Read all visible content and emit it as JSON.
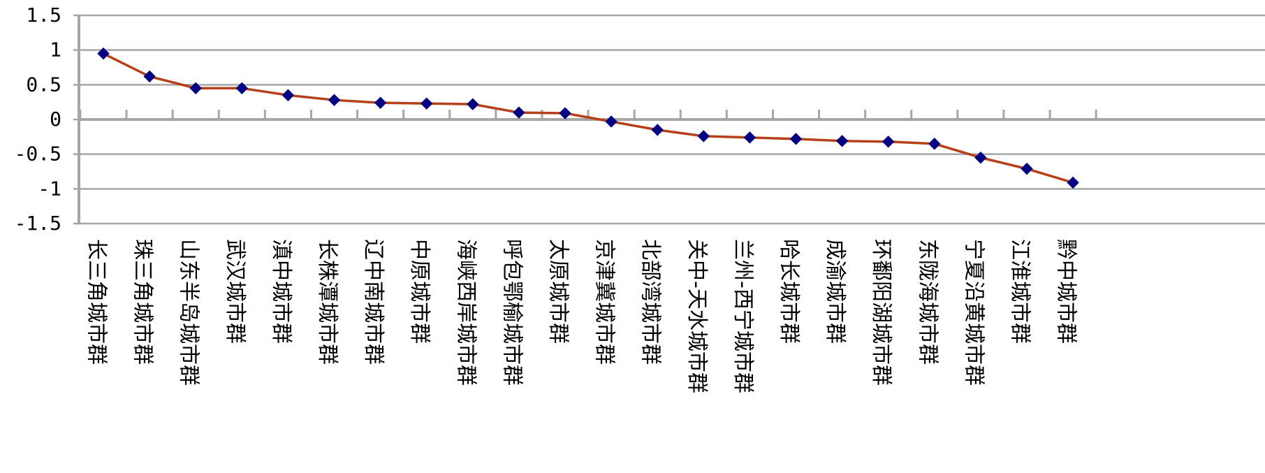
{
  "chart_data": {
    "type": "line",
    "title": "",
    "xlabel": "",
    "ylabel": "",
    "ylim": [
      -1.5,
      1.5
    ],
    "yticks": [
      1.5,
      1,
      0.5,
      0,
      -0.5,
      -1,
      -1.5
    ],
    "ytick_labels": [
      "1.5",
      "1",
      "0.5",
      "0",
      "-0.5",
      "-1",
      "-1.5"
    ],
    "grid": true,
    "legend": "none",
    "categories": [
      "长三角城市群",
      "珠三角城市群",
      "山东半岛城市群",
      "武汉城市群",
      "滇中城市群",
      "长株潭城市群",
      "辽中南城市群",
      "中原城市群",
      "海峡西岸城市群",
      "呼包鄂榆城市群",
      "太原城市群",
      "京津冀城市群",
      "北部湾城市群",
      "关中-天水城市群",
      "兰州-西宁城市群",
      "哈长城市群",
      "成渝城市群",
      "环鄱阳湖城市群",
      "东陇海城市群",
      "宁夏沿黄城市群",
      "江淮城市群",
      "黔中城市群"
    ],
    "values": [
      0.95,
      0.62,
      0.45,
      0.45,
      0.35,
      0.28,
      0.24,
      0.23,
      0.22,
      0.1,
      0.09,
      -0.03,
      -0.15,
      -0.24,
      -0.26,
      -0.28,
      -0.31,
      -0.32,
      -0.35,
      -0.55,
      -0.71,
      -0.91
    ],
    "colors": {
      "line": "#b5401a",
      "marker": "#000080",
      "grid": "#a6a6a6",
      "axis": "#a6a6a6"
    }
  }
}
